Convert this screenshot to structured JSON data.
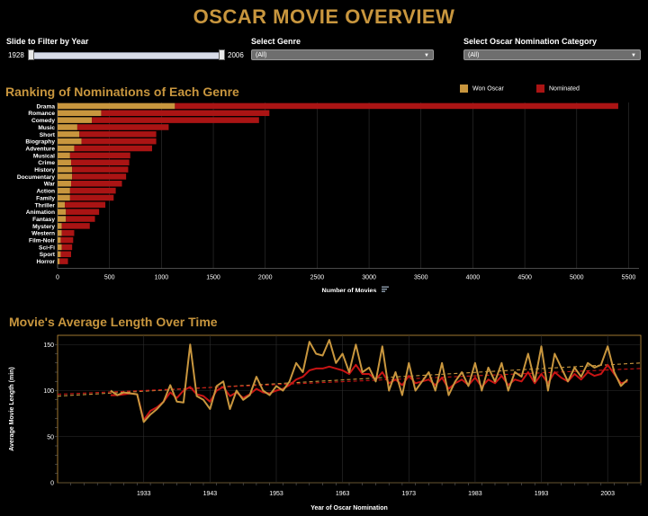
{
  "title": "OSCAR MOVIE OVERVIEW",
  "filters": {
    "year_slider": {
      "label": "Slide to Filter by Year",
      "min_label": "1928",
      "max_label": "2006"
    },
    "genre": {
      "label": "Select Genre",
      "value": "(All)"
    },
    "category": {
      "label": "Select Oscar Nomination Category",
      "value": "(All)"
    }
  },
  "colors": {
    "gold": "#c8963e",
    "red": "#aa1414",
    "accent_title": "#c8963e"
  },
  "chart_data": [
    {
      "type": "bar",
      "orientation": "horizontal",
      "stacked": true,
      "title": "Ranking of Nominations of Each Genre",
      "xlabel": "Number of Movies",
      "ylabel": "",
      "xlim": [
        0,
        5600
      ],
      "xticks": [
        0,
        500,
        1000,
        1500,
        2000,
        2500,
        3000,
        3500,
        4000,
        4500,
        5000,
        5500
      ],
      "legend": {
        "placement": "top-right",
        "entries": [
          "Won Oscar",
          "Nominated"
        ]
      },
      "categories": [
        "Drama",
        "Romance",
        "Comedy",
        "Music",
        "Short",
        "Biography",
        "Adventure",
        "Musical",
        "Crime",
        "History",
        "Documentary",
        "War",
        "Action",
        "Family",
        "Thriller",
        "Animation",
        "Fantasy",
        "Mystery",
        "Western",
        "Film-Noir",
        "Sci-Fi",
        "Sport",
        "Horror"
      ],
      "series": [
        {
          "name": "Won Oscar",
          "color": "#c8963e",
          "values": [
            1130,
            420,
            330,
            190,
            210,
            230,
            160,
            120,
            130,
            140,
            140,
            130,
            120,
            120,
            70,
            80,
            80,
            40,
            40,
            30,
            40,
            30,
            20
          ]
        },
        {
          "name": "Nominated",
          "color": "#aa1414",
          "values": [
            4270,
            1620,
            1610,
            880,
            740,
            720,
            750,
            580,
            560,
            540,
            520,
            490,
            440,
            420,
            390,
            320,
            280,
            270,
            120,
            120,
            100,
            100,
            80
          ]
        }
      ],
      "grid": true
    },
    {
      "type": "line",
      "title": "Movie's Average Length Over Time",
      "xlabel": "Year of Oscar Nomination",
      "ylabel": "Average Movie Length (min)",
      "xlim": [
        1920,
        2008
      ],
      "ylim": [
        0,
        160
      ],
      "xticks": [
        1933,
        1943,
        1953,
        1963,
        1973,
        1983,
        1993,
        2003
      ],
      "yticks": [
        0,
        50,
        100,
        150
      ],
      "grid": true,
      "series": [
        {
          "name": "Won Oscar",
          "color": "#c8963e",
          "x": [
            1928,
            1929,
            1930,
            1931,
            1932,
            1933,
            1934,
            1935,
            1936,
            1937,
            1938,
            1939,
            1940,
            1941,
            1942,
            1943,
            1944,
            1945,
            1946,
            1947,
            1948,
            1949,
            1950,
            1951,
            1952,
            1953,
            1954,
            1955,
            1956,
            1957,
            1958,
            1959,
            1960,
            1961,
            1962,
            1963,
            1964,
            1965,
            1966,
            1967,
            1968,
            1969,
            1970,
            1971,
            1972,
            1973,
            1974,
            1975,
            1976,
            1977,
            1978,
            1979,
            1980,
            1981,
            1982,
            1983,
            1984,
            1985,
            1986,
            1987,
            1988,
            1989,
            1990,
            1991,
            1992,
            1993,
            1994,
            1995,
            1996,
            1997,
            1998,
            1999,
            2000,
            2001,
            2002,
            2003,
            2004,
            2005,
            2006
          ],
          "values": [
            100,
            95,
            98,
            97,
            96,
            66,
            74,
            80,
            88,
            106,
            88,
            87,
            150,
            94,
            90,
            80,
            105,
            110,
            80,
            100,
            90,
            95,
            115,
            100,
            95,
            105,
            100,
            110,
            130,
            120,
            153,
            140,
            138,
            155,
            130,
            140,
            120,
            150,
            120,
            125,
            110,
            148,
            100,
            120,
            95,
            130,
            100,
            110,
            120,
            100,
            130,
            95,
            110,
            120,
            105,
            130,
            100,
            125,
            110,
            130,
            100,
            120,
            115,
            140,
            110,
            148,
            100,
            140,
            125,
            110,
            125,
            115,
            130,
            125,
            128,
            148,
            120,
            105,
            112
          ]
        },
        {
          "name": "Nominated",
          "color": "#c81414",
          "x": [
            1928,
            1929,
            1930,
            1931,
            1932,
            1933,
            1934,
            1935,
            1936,
            1937,
            1938,
            1939,
            1940,
            1941,
            1942,
            1943,
            1944,
            1945,
            1946,
            1947,
            1948,
            1949,
            1950,
            1951,
            1952,
            1953,
            1954,
            1955,
            1956,
            1957,
            1958,
            1959,
            1960,
            1961,
            1962,
            1963,
            1964,
            1965,
            1966,
            1967,
            1968,
            1969,
            1970,
            1971,
            1972,
            1973,
            1974,
            1975,
            1976,
            1977,
            1978,
            1979,
            1980,
            1981,
            1982,
            1983,
            1984,
            1985,
            1986,
            1987,
            1988,
            1989,
            1990,
            1991,
            1992,
            1993,
            1994,
            1995,
            1996,
            1997,
            1998,
            1999,
            2000,
            2001,
            2002,
            2003,
            2004,
            2005,
            2006
          ],
          "values": [
            95,
            95,
            96,
            97,
            96,
            68,
            78,
            82,
            88,
            98,
            92,
            100,
            104,
            96,
            94,
            88,
            100,
            104,
            94,
            98,
            92,
            96,
            102,
            98,
            97,
            100,
            102,
            106,
            112,
            115,
            122,
            124,
            124,
            126,
            124,
            122,
            118,
            128,
            118,
            118,
            112,
            120,
            108,
            112,
            106,
            116,
            108,
            110,
            112,
            106,
            114,
            102,
            108,
            112,
            106,
            114,
            104,
            112,
            108,
            116,
            106,
            112,
            110,
            120,
            108,
            118,
            108,
            120,
            114,
            110,
            118,
            112,
            120,
            116,
            118,
            128,
            118,
            108,
            110
          ]
        }
      ],
      "trend_lines": [
        {
          "series": "Won Oscar",
          "color": "#c8963e",
          "style": "dashed",
          "start": [
            1920,
            94
          ],
          "end": [
            2008,
            130
          ]
        },
        {
          "series": "Nominated",
          "color": "#c81414",
          "style": "dashed",
          "start": [
            1920,
            96
          ],
          "end": [
            2008,
            124
          ]
        }
      ]
    }
  ]
}
